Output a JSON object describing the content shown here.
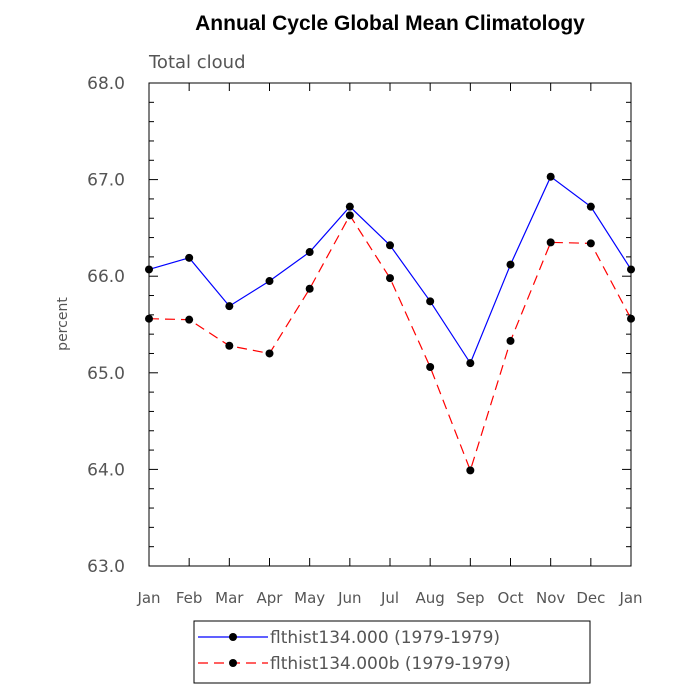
{
  "chart_data": {
    "type": "line",
    "title": "Annual Cycle Global Mean Climatology",
    "subtitle": "Total cloud",
    "ylabel": "percent",
    "ylim": [
      63.0,
      68.0
    ],
    "yticks": [
      "63.0",
      "64.0",
      "65.0",
      "66.0",
      "67.0",
      "68.0"
    ],
    "categories": [
      "Jan",
      "Feb",
      "Mar",
      "Apr",
      "May",
      "Jun",
      "Jul",
      "Aug",
      "Sep",
      "Oct",
      "Nov",
      "Dec",
      "Jan"
    ],
    "series": [
      {
        "name": "flthist134.000 (1979-1979)",
        "color": "#0000ff",
        "style": "solid",
        "values": [
          66.07,
          66.19,
          65.69,
          65.95,
          66.25,
          66.72,
          66.32,
          65.74,
          65.1,
          66.12,
          67.03,
          66.72,
          66.07
        ]
      },
      {
        "name": "flthist134.000b (1979-1979)",
        "color": "#ff0000",
        "style": "dashed",
        "values": [
          65.56,
          65.55,
          65.28,
          65.2,
          65.87,
          66.63,
          65.98,
          65.06,
          63.99,
          65.33,
          66.35,
          66.34,
          65.56
        ]
      }
    ],
    "grid": false,
    "legend_position": "bottom"
  }
}
